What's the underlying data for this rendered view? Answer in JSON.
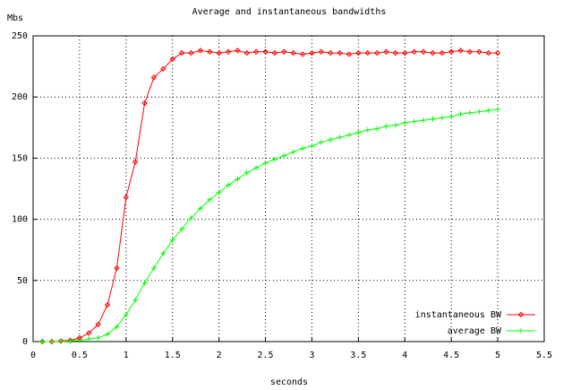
{
  "chart_data": {
    "type": "line",
    "title": "Average and instantaneous bandwidths",
    "y_label": "Mbs",
    "x_label": "seconds",
    "x": [
      0.1,
      0.2,
      0.3,
      0.4,
      0.5,
      0.6,
      0.7,
      0.8,
      0.9,
      1.0,
      1.1,
      1.2,
      1.3,
      1.4,
      1.5,
      1.6,
      1.7,
      1.8,
      1.9,
      2.0,
      2.1,
      2.2,
      2.3,
      2.4,
      2.5,
      2.6,
      2.7,
      2.8,
      2.9,
      3.0,
      3.1,
      3.2,
      3.3,
      3.4,
      3.5,
      3.6,
      3.7,
      3.8,
      3.9,
      4.0,
      4.1,
      4.2,
      4.3,
      4.4,
      4.5,
      4.6,
      4.7,
      4.8,
      4.9,
      5.0
    ],
    "series": [
      {
        "name": "instantaneous BW",
        "color": "#ff0000",
        "marker": "diamond",
        "values": [
          0,
          0,
          0.5,
          1,
          3,
          7,
          14,
          30,
          60,
          118,
          147,
          195,
          216,
          223,
          231,
          236,
          236,
          238,
          237,
          236,
          237,
          238,
          236,
          237,
          237,
          236,
          237,
          236,
          235,
          236,
          237,
          236,
          236,
          235,
          236,
          236,
          236,
          237,
          236,
          236,
          237,
          237,
          236,
          236,
          237,
          238,
          237,
          237,
          236,
          236
        ]
      },
      {
        "name": "average BW",
        "color": "#00ff00",
        "marker": "plus",
        "values": [
          0,
          0,
          0,
          0.5,
          1,
          2,
          3,
          6,
          12,
          22,
          34,
          48,
          60,
          72,
          83,
          92,
          101,
          109,
          116,
          122,
          128,
          133,
          138,
          142,
          146,
          149,
          152,
          155,
          158,
          160,
          163,
          165,
          167,
          169,
          171,
          173,
          174,
          176,
          177,
          179,
          180,
          181,
          182,
          183,
          184,
          186,
          187,
          188,
          189,
          190
        ]
      }
    ],
    "xlim": [
      0,
      5.5
    ],
    "xticks": [
      0,
      0.5,
      1,
      1.5,
      2,
      2.5,
      3,
      3.5,
      4,
      4.5,
      5,
      5.5
    ],
    "ylim": [
      0,
      250
    ],
    "yticks": [
      0,
      50,
      100,
      150,
      200,
      250
    ],
    "grid": true,
    "legend": "bottom-right"
  }
}
